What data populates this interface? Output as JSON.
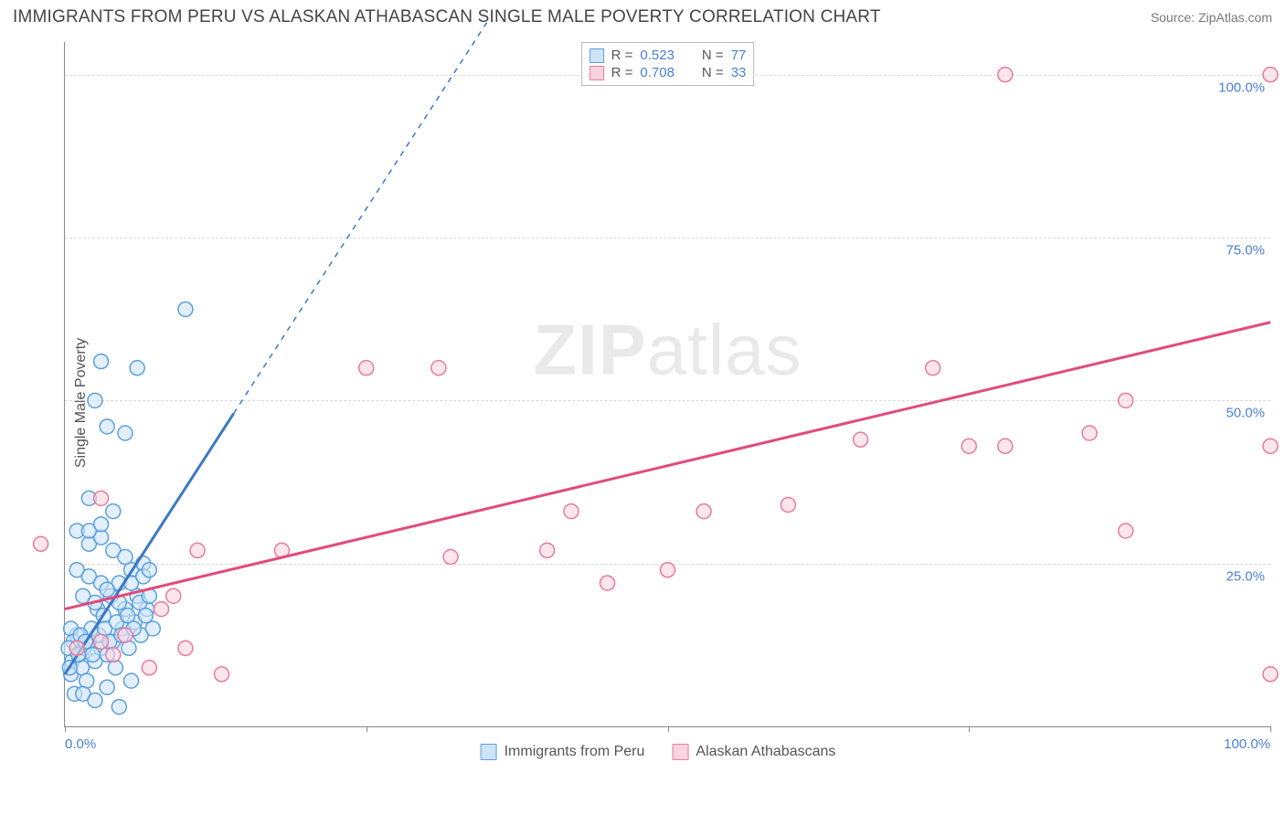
{
  "header": {
    "title": "IMMIGRANTS FROM PERU VS ALASKAN ATHABASCAN SINGLE MALE POVERTY CORRELATION CHART",
    "source": "Source: ZipAtlas.com"
  },
  "watermark": {
    "part1": "ZIP",
    "part2": "atlas"
  },
  "chart": {
    "type": "scatter",
    "y_axis_label": "Single Male Poverty",
    "xlim": [
      0,
      100
    ],
    "ylim": [
      0,
      105
    ],
    "x_ticks": [
      0,
      25,
      50,
      75,
      100
    ],
    "y_ticks": [
      25,
      50,
      75,
      100
    ],
    "x_tick_labels": [
      "0.0%",
      "",
      "",
      "",
      "100.0%"
    ],
    "y_tick_labels": [
      "25.0%",
      "50.0%",
      "75.0%",
      "100.0%"
    ],
    "grid_color": "#d8d8d8",
    "background_color": "#ffffff",
    "axis_color": "#888888",
    "tick_label_color": "#4a7fd6",
    "tick_label_fontsize": 15,
    "axis_label_fontsize": 16,
    "axis_label_color": "#555555",
    "marker_radius": 8,
    "marker_stroke_width": 1.5,
    "marker_fill_opacity": 0.28,
    "trend_line_width": 3,
    "trend_dashed_pattern": "6,6"
  },
  "legend_top": {
    "rows": [
      {
        "r_label": "R =",
        "r_value": "0.523",
        "n_label": "N =",
        "n_value": "77",
        "color": "#5a9fe0",
        "fill": "#cde4f7"
      },
      {
        "r_label": "R =",
        "r_value": "0.708",
        "n_label": "N =",
        "n_value": "33",
        "color": "#e87a9d",
        "fill": "#f8d4de"
      }
    ]
  },
  "legend_bottom": {
    "items": [
      {
        "label": "Immigrants from Peru",
        "color": "#5a9fe0",
        "fill": "#cde4f7"
      },
      {
        "label": "Alaskan Athabascans",
        "color": "#e87a9d",
        "fill": "#f8d4de"
      }
    ]
  },
  "series": [
    {
      "name": "Immigrants from Peru",
      "color": "#3b78c4",
      "stroke": "#5a9fe0",
      "fill": "#cde4f7",
      "trend": {
        "x1": 0,
        "y1": 8,
        "x2": 14,
        "y2": 48,
        "dashed_to_x": 35,
        "dashed_to_y": 108
      },
      "points": [
        [
          0.5,
          8
        ],
        [
          0.6,
          10
        ],
        [
          0.8,
          5
        ],
        [
          1.0,
          14
        ],
        [
          1.2,
          11
        ],
        [
          0.5,
          15
        ],
        [
          0.7,
          13
        ],
        [
          1.4,
          9
        ],
        [
          1.6,
          12
        ],
        [
          1.8,
          7
        ],
        [
          2.0,
          13
        ],
        [
          2.2,
          15
        ],
        [
          2.5,
          10
        ],
        [
          2.7,
          18
        ],
        [
          3.0,
          12
        ],
        [
          3.2,
          17
        ],
        [
          3.5,
          11
        ],
        [
          3.8,
          20
        ],
        [
          4.0,
          13
        ],
        [
          4.2,
          9
        ],
        [
          4.5,
          22
        ],
        [
          4.8,
          15
        ],
        [
          5.0,
          18
        ],
        [
          5.3,
          12
        ],
        [
          5.5,
          24
        ],
        [
          5.8,
          16
        ],
        [
          6.0,
          20
        ],
        [
          6.3,
          14
        ],
        [
          6.5,
          25
        ],
        [
          6.8,
          18
        ],
        [
          1.0,
          30
        ],
        [
          2.0,
          28
        ],
        [
          3.0,
          29
        ],
        [
          4.0,
          27
        ],
        [
          5.0,
          26
        ],
        [
          1.5,
          5
        ],
        [
          2.5,
          4
        ],
        [
          3.5,
          6
        ],
        [
          4.5,
          3
        ],
        [
          5.5,
          7
        ],
        [
          0.3,
          12
        ],
        [
          0.4,
          9
        ],
        [
          1.1,
          11
        ],
        [
          1.3,
          14
        ],
        [
          1.7,
          13
        ],
        [
          2.3,
          11
        ],
        [
          2.8,
          14
        ],
        [
          3.3,
          15
        ],
        [
          3.7,
          13
        ],
        [
          4.3,
          16
        ],
        [
          4.7,
          14
        ],
        [
          5.2,
          17
        ],
        [
          5.7,
          15
        ],
        [
          6.2,
          19
        ],
        [
          6.7,
          17
        ],
        [
          7.0,
          20
        ],
        [
          7.3,
          15
        ],
        [
          1.0,
          24
        ],
        [
          2.0,
          23
        ],
        [
          3.0,
          22
        ],
        [
          2.0,
          30
        ],
        [
          3.0,
          31
        ],
        [
          2.5,
          50
        ],
        [
          3.5,
          46
        ],
        [
          5.0,
          45
        ],
        [
          3.0,
          56
        ],
        [
          6.0,
          55
        ],
        [
          10.0,
          64
        ],
        [
          2.0,
          35
        ],
        [
          4.0,
          33
        ],
        [
          1.5,
          20
        ],
        [
          2.5,
          19
        ],
        [
          3.5,
          21
        ],
        [
          4.5,
          19
        ],
        [
          5.5,
          22
        ],
        [
          6.5,
          23
        ],
        [
          7.0,
          24
        ]
      ]
    },
    {
      "name": "Alaskan Athabascans",
      "color": "#e24a7a",
      "stroke": "#e87a9d",
      "fill": "#f8d4de",
      "trend": {
        "x1": 0,
        "y1": 18,
        "x2": 100,
        "y2": 62
      },
      "points": [
        [
          -2,
          28
        ],
        [
          1,
          12
        ],
        [
          3,
          13
        ],
        [
          4,
          11
        ],
        [
          5,
          14
        ],
        [
          7,
          9
        ],
        [
          8,
          18
        ],
        [
          9,
          20
        ],
        [
          10,
          12
        ],
        [
          11,
          27
        ],
        [
          13,
          8
        ],
        [
          3,
          35
        ],
        [
          18,
          27
        ],
        [
          25,
          55
        ],
        [
          31,
          55
        ],
        [
          32,
          26
        ],
        [
          42,
          33
        ],
        [
          53,
          33
        ],
        [
          40,
          27
        ],
        [
          66,
          44
        ],
        [
          72,
          55
        ],
        [
          78,
          43
        ],
        [
          75,
          43
        ],
        [
          88,
          50
        ],
        [
          85,
          45
        ],
        [
          88,
          30
        ],
        [
          78,
          100
        ],
        [
          100,
          100
        ],
        [
          100,
          43
        ],
        [
          100,
          8
        ],
        [
          50,
          24
        ],
        [
          60,
          34
        ],
        [
          45,
          22
        ]
      ]
    }
  ]
}
